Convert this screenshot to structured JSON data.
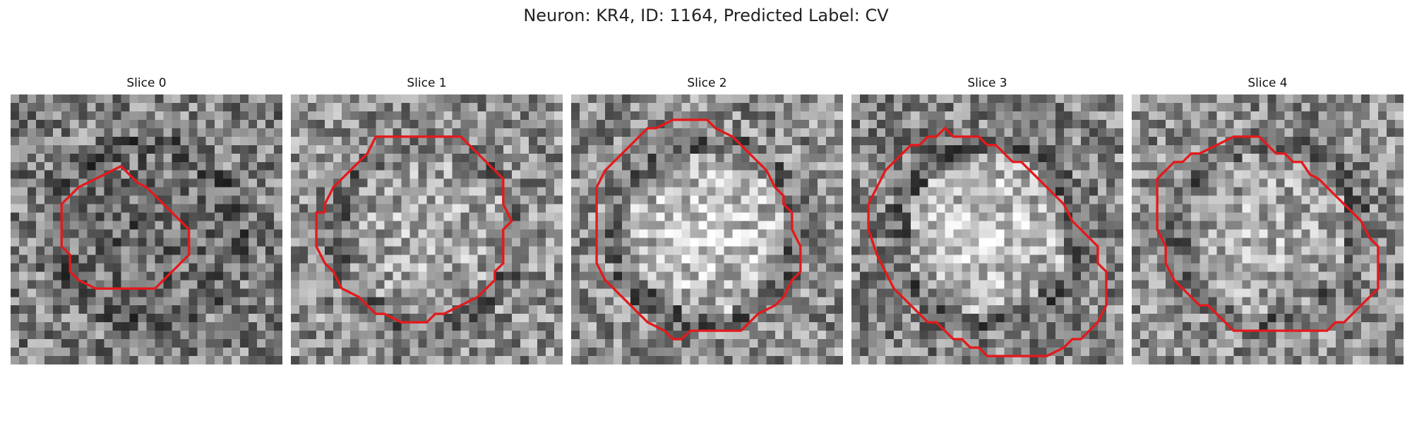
{
  "figure": {
    "title": "Neuron: KR4, ID: 1164, Predicted Label: CV"
  },
  "panels": [
    {
      "title": "Slice 0",
      "mean": 0.5,
      "center_brightness": -0.1,
      "spot": 0.0,
      "outline_color": "#e31a1c"
    },
    {
      "title": "Slice 1",
      "mean": 0.56,
      "center_brightness": 0.12,
      "spot": 0.0,
      "outline_color": "#e31a1c"
    },
    {
      "title": "Slice 2",
      "mean": 0.55,
      "center_brightness": 0.3,
      "spot": 0.0,
      "outline_color": "#e31a1c"
    },
    {
      "title": "Slice 3",
      "mean": 0.52,
      "center_brightness": 0.33,
      "spot": 0.0,
      "outline_color": "#e31a1c"
    },
    {
      "title": "Slice 4",
      "mean": 0.55,
      "center_brightness": 0.15,
      "spot": 0.0,
      "outline_color": "#e31a1c"
    }
  ],
  "colormap": "gray"
}
